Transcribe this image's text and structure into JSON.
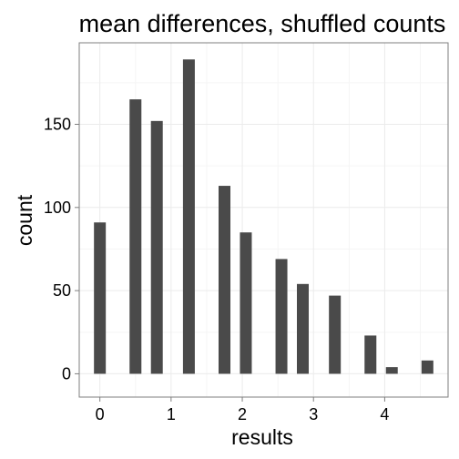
{
  "chart_data": {
    "type": "bar",
    "title": "mean differences, shuffled counts",
    "xlabel": "results",
    "ylabel": "count",
    "x": [
      0,
      0.5,
      0.8,
      1.25,
      1.75,
      2.05,
      2.55,
      2.85,
      3.3,
      3.8,
      4.1,
      4.6
    ],
    "values": [
      91,
      165,
      152,
      189,
      113,
      85,
      69,
      54,
      47,
      23,
      4,
      8
    ],
    "xlim": [
      -0.29,
      4.89
    ],
    "ylim": [
      -14,
      199
    ],
    "x_ticks": [
      0,
      1,
      2,
      3,
      4
    ],
    "x_tick_labels": [
      "0",
      "1",
      "2",
      "3",
      "4"
    ],
    "y_ticks": [
      0,
      50,
      100,
      150
    ],
    "y_tick_labels": [
      "0",
      "50",
      "100",
      "150"
    ],
    "grid": true,
    "bar_color": "#4a4a4a",
    "panel_background": "#ffffff",
    "grid_color": "#ebebeb"
  }
}
